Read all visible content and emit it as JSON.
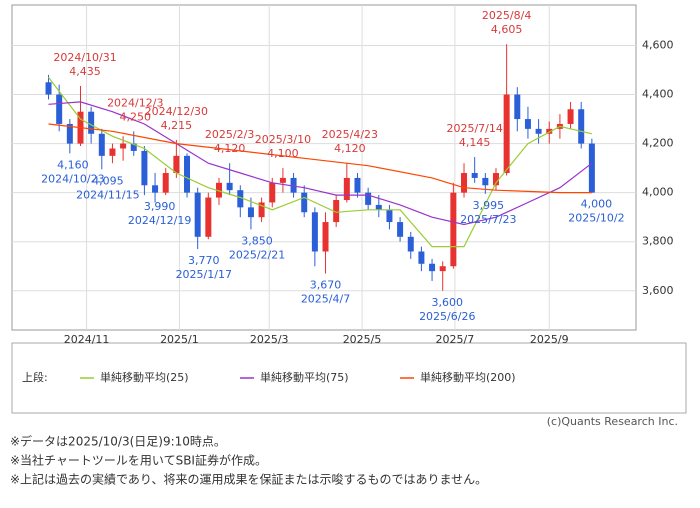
{
  "chart_data": {
    "type": "candlestick",
    "up_color": "#e8322f",
    "down_color": "#2a5fd8",
    "xlim": [
      "2024/09/13",
      "2025/10/28"
    ],
    "xticks": [
      {
        "value": "2024/11/01",
        "label": "2024/11"
      },
      {
        "value": "2025/01/01",
        "label": "2025/1"
      },
      {
        "value": "2025/03/01",
        "label": "2025/3"
      },
      {
        "value": "2025/05/01",
        "label": "2025/5"
      },
      {
        "value": "2025/07/01",
        "label": "2025/7"
      },
      {
        "value": "2025/09/01",
        "label": "2025/9"
      }
    ],
    "ylim": [
      3440,
      4765
    ],
    "yticks": [
      {
        "value": 3600,
        "label": "3,600"
      },
      {
        "value": 3800,
        "label": "3,800"
      },
      {
        "value": 4000,
        "label": "4,000"
      },
      {
        "value": 4200,
        "label": "4,200"
      },
      {
        "value": 4400,
        "label": "4,400"
      },
      {
        "value": 4600,
        "label": "4,600"
      }
    ],
    "grid": true,
    "x": [
      "2024/10/07",
      "2024/10/14",
      "2024/10/21",
      "2024/10/28",
      "2024/11/04",
      "2024/11/11",
      "2024/11/18",
      "2024/11/25",
      "2024/12/02",
      "2024/12/09",
      "2024/12/16",
      "2024/12/23",
      "2024/12/30",
      "2025/01/06",
      "2025/01/13",
      "2025/01/20",
      "2025/01/27",
      "2025/02/03",
      "2025/02/10",
      "2025/02/17",
      "2025/02/24",
      "2025/03/03",
      "2025/03/10",
      "2025/03/17",
      "2025/03/24",
      "2025/03/31",
      "2025/04/07",
      "2025/04/14",
      "2025/04/21",
      "2025/04/28",
      "2025/05/05",
      "2025/05/12",
      "2025/05/19",
      "2025/05/26",
      "2025/06/02",
      "2025/06/09",
      "2025/06/16",
      "2025/06/23",
      "2025/06/30",
      "2025/07/07",
      "2025/07/14",
      "2025/07/21",
      "2025/07/28",
      "2025/08/04",
      "2025/08/11",
      "2025/08/18",
      "2025/08/25",
      "2025/09/01",
      "2025/09/08",
      "2025/09/15",
      "2025/09/22",
      "2025/09/29"
    ],
    "open": [
      4450,
      4400,
      4280,
      4200,
      4330,
      4240,
      4150,
      4180,
      4200,
      4170,
      4030,
      4000,
      4080,
      4150,
      4000,
      3820,
      3980,
      4040,
      4010,
      3940,
      3900,
      3960,
      4040,
      4060,
      4000,
      3920,
      3760,
      3880,
      3970,
      4060,
      4000,
      3950,
      3930,
      3880,
      3820,
      3760,
      3710,
      3680,
      3700,
      4000,
      4080,
      4060,
      4030,
      4080,
      4400,
      4300,
      4260,
      4240,
      4260,
      4280,
      4340,
      4200
    ],
    "high": [
      4480,
      4440,
      4300,
      4435,
      4350,
      4260,
      4200,
      4230,
      4250,
      4190,
      4080,
      4100,
      4215,
      4160,
      4020,
      4000,
      4060,
      4120,
      4030,
      3980,
      3980,
      4060,
      4100,
      4080,
      4030,
      3940,
      3920,
      3990,
      4120,
      4080,
      4020,
      3990,
      3950,
      3900,
      3840,
      3780,
      3730,
      3720,
      4040,
      4120,
      4145,
      4080,
      4100,
      4605,
      4430,
      4350,
      4300,
      4290,
      4320,
      4370,
      4370,
      4220
    ],
    "low": [
      4380,
      4250,
      4160,
      4190,
      4200,
      4095,
      4120,
      4130,
      4150,
      3990,
      3960,
      3990,
      4060,
      3980,
      3770,
      3810,
      3950,
      3990,
      3900,
      3850,
      3880,
      3940,
      4000,
      3980,
      3900,
      3700,
      3670,
      3860,
      3960,
      3980,
      3930,
      3900,
      3850,
      3800,
      3730,
      3680,
      3640,
      3600,
      3690,
      3980,
      4040,
      3995,
      4010,
      4070,
      4250,
      4220,
      4200,
      4200,
      4220,
      4260,
      4180,
      4000
    ],
    "close": [
      4400,
      4280,
      4200,
      4330,
      4240,
      4150,
      4180,
      4200,
      4170,
      4030,
      4000,
      4080,
      4150,
      4000,
      3820,
      3980,
      4040,
      4010,
      3940,
      3900,
      3960,
      4040,
      4060,
      4000,
      3920,
      3760,
      3880,
      3970,
      4060,
      4000,
      3950,
      3930,
      3880,
      3820,
      3760,
      3710,
      3680,
      3700,
      4000,
      4080,
      4060,
      4030,
      4080,
      4400,
      4300,
      4260,
      4240,
      4260,
      4280,
      4340,
      4200,
      4000
    ],
    "series": [
      {
        "name": "単純移動平均(25)",
        "color": "#9acd32",
        "x": [
          "2024/10/07",
          "2024/10/28",
          "2024/11/18",
          "2024/12/09",
          "2024/12/30",
          "2025/01/20",
          "2025/02/10",
          "2025/03/03",
          "2025/03/24",
          "2025/04/14",
          "2025/05/05",
          "2025/05/26",
          "2025/06/16",
          "2025/07/07",
          "2025/07/28",
          "2025/08/18",
          "2025/09/08",
          "2025/09/29"
        ],
        "values": [
          4470,
          4300,
          4230,
          4180,
          4080,
          4020,
          3980,
          3930,
          3980,
          3920,
          3930,
          3930,
          3780,
          3780,
          4040,
          4200,
          4270,
          4240
        ]
      },
      {
        "name": "単純移動平均(75)",
        "color": "#9933cc",
        "x": [
          "2024/10/07",
          "2024/10/28",
          "2024/11/18",
          "2024/12/09",
          "2024/12/30",
          "2025/01/20",
          "2025/02/10",
          "2025/03/03",
          "2025/03/24",
          "2025/04/14",
          "2025/05/05",
          "2025/05/26",
          "2025/06/16",
          "2025/07/07",
          "2025/07/28",
          "2025/08/18",
          "2025/09/08",
          "2025/09/29"
        ],
        "values": [
          4360,
          4370,
          4330,
          4280,
          4200,
          4120,
          4080,
          4040,
          4020,
          3990,
          3990,
          3950,
          3900,
          3870,
          3900,
          3960,
          4020,
          4120
        ]
      },
      {
        "name": "単純移動平均(200)",
        "color": "#ff4500",
        "x": [
          "2024/10/07",
          "2024/11/18",
          "2024/12/30",
          "2025/02/10",
          "2025/03/24",
          "2025/05/05",
          "2025/06/16",
          "2025/07/07",
          "2025/07/28",
          "2025/09/08",
          "2025/09/29"
        ],
        "values": [
          4280,
          4250,
          4200,
          4170,
          4140,
          4110,
          4060,
          4020,
          4010,
          4000,
          4000
        ]
      }
    ],
    "legend_title": "上段:",
    "annotations": [
      {
        "date": "2024/10/31",
        "value": 4435,
        "label": "4,435",
        "color": "#d83a3a"
      },
      {
        "date": "2024/10/23",
        "value": 4160,
        "label": "4,160",
        "color": "#2a5fd8"
      },
      {
        "date": "2024/11/15",
        "value": 4095,
        "label": "4,095",
        "color": "#2a5fd8"
      },
      {
        "date": "2024/12/3",
        "value": 4250,
        "label": "4,250",
        "color": "#d83a3a"
      },
      {
        "date": "2024/12/19",
        "value": 3990,
        "label": "3,990",
        "color": "#2a5fd8"
      },
      {
        "date": "2024/12/30",
        "value": 4215,
        "label": "4,215",
        "color": "#d83a3a"
      },
      {
        "date": "2025/1/17",
        "value": 3770,
        "label": "3,770",
        "color": "#2a5fd8"
      },
      {
        "date": "2025/2/3",
        "value": 4120,
        "label": "4,120",
        "color": "#d83a3a"
      },
      {
        "date": "2025/2/21",
        "value": 3850,
        "label": "3,850",
        "color": "#2a5fd8"
      },
      {
        "date": "2025/3/10",
        "value": 4100,
        "label": "4,100",
        "color": "#d83a3a"
      },
      {
        "date": "2025/4/7",
        "value": 3670,
        "label": "3,670",
        "color": "#2a5fd8"
      },
      {
        "date": "2025/4/23",
        "value": 4120,
        "label": "4,120",
        "color": "#d83a3a"
      },
      {
        "date": "2025/6/26",
        "value": 3600,
        "label": "3,600",
        "color": "#2a5fd8"
      },
      {
        "date": "2025/7/14",
        "value": 4145,
        "label": "4,145",
        "color": "#d83a3a"
      },
      {
        "date": "2025/7/23",
        "value": 3995,
        "label": "3,995",
        "color": "#2a5fd8"
      },
      {
        "date": "2025/8/4",
        "value": 4605,
        "label": "4,605",
        "color": "#d83a3a"
      },
      {
        "date": "2025/10/2",
        "value": 4000,
        "label": "4,000",
        "color": "#2a5fd8"
      }
    ],
    "copyright": "(c)Quants Research Inc.",
    "notes": [
      "※データは2025/10/3(日足)9:10時点。",
      "※当社チャートツールを用いてSBI証券が作成。",
      "※上記は過去の実績であり、将来の運用成果を保証または示唆するものではありません。"
    ]
  }
}
